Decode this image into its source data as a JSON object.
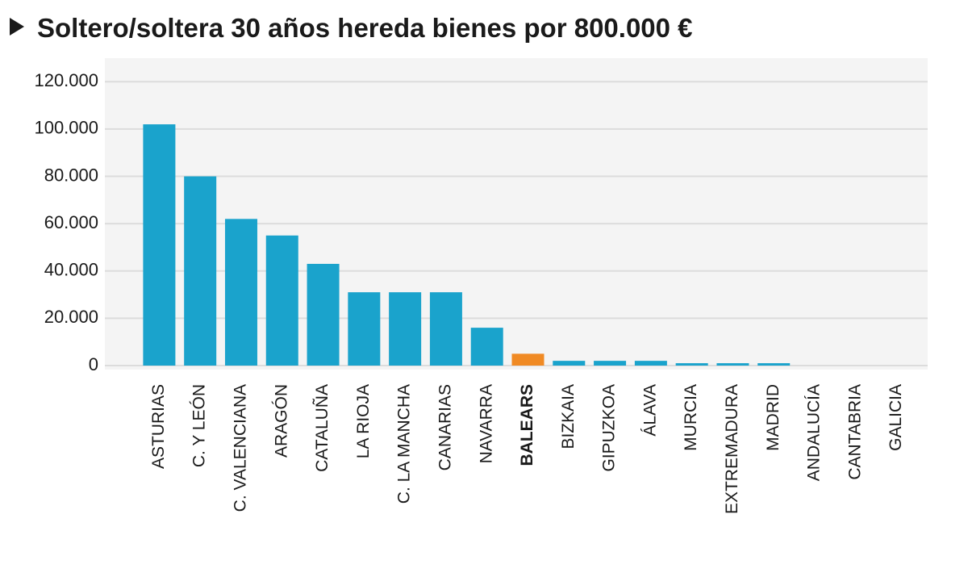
{
  "chart_data": {
    "type": "bar",
    "title": "Soltero/soltera 30 años hereda bienes por 800.000 €",
    "categories": [
      "ASTURIAS",
      "C. Y LEÓN",
      "C. VALENCIANA",
      "ARAGÓN",
      "CATALUÑA",
      "LA RIOJA",
      "C. LA MANCHA",
      "CANARIAS",
      "NAVARRA",
      "BALEARS",
      "BIZKAIA",
      "GIPUZKOA",
      "ÁLAVA",
      "MURCIA",
      "EXTREMADURA",
      "MADRID",
      "ANDALUCÍA",
      "CANTABRIA",
      "GALICIA"
    ],
    "values": [
      102000,
      80000,
      62000,
      55000,
      43000,
      31000,
      31000,
      31000,
      16000,
      5000,
      2000,
      2000,
      2000,
      1000,
      1000,
      1000,
      0,
      0,
      0
    ],
    "color": "#1aa3cc",
    "colors": [
      "#1aa3cc",
      "#1aa3cc",
      "#1aa3cc",
      "#1aa3cc",
      "#1aa3cc",
      "#1aa3cc",
      "#1aa3cc",
      "#1aa3cc",
      "#1aa3cc",
      "#f08a24",
      "#1aa3cc",
      "#1aa3cc",
      "#1aa3cc",
      "#1aa3cc",
      "#1aa3cc",
      "#1aa3cc",
      "#1aa3cc",
      "#1aa3cc",
      "#1aa3cc"
    ],
    "ylim": [
      0,
      130000
    ],
    "yticks": [
      {
        "value": 0,
        "label": "0"
      },
      {
        "value": 20000,
        "label": "20.000"
      },
      {
        "value": 40000,
        "label": "40.000"
      },
      {
        "value": 60000,
        "label": "60.000"
      },
      {
        "value": 80000,
        "label": "80.000"
      },
      {
        "value": 100000,
        "label": "100.000"
      },
      {
        "value": 120000,
        "label": "120.000"
      }
    ],
    "grid": true
  }
}
